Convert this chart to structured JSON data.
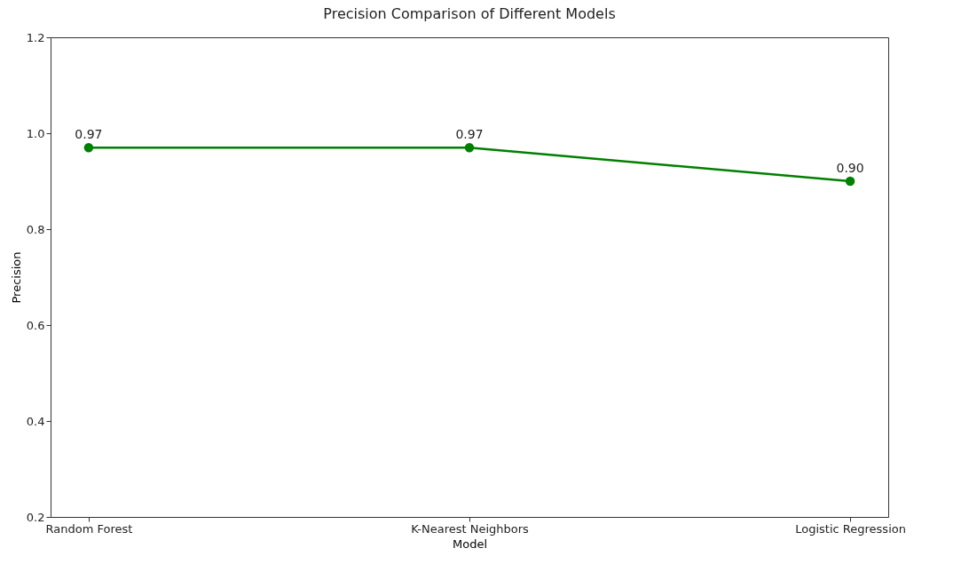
{
  "chart_data": {
    "type": "line",
    "title": "Precision Comparison of Different Models",
    "xlabel": "Model",
    "ylabel": "Precision",
    "categories": [
      "Random Forest",
      "K-Nearest Neighbors",
      "Logistic Regression"
    ],
    "series": [
      {
        "color": "#008000",
        "values": [
          0.97,
          0.97,
          0.9
        ],
        "value_labels": [
          "0.97",
          "0.97",
          "0.90"
        ]
      }
    ],
    "ylim": [
      0.2,
      1.2
    ],
    "yticks": [
      {
        "value": 0.2,
        "label": "0.2"
      },
      {
        "value": 0.4,
        "label": "0.4"
      },
      {
        "value": 0.6,
        "label": "0.6"
      },
      {
        "value": 0.8,
        "label": "0.8"
      },
      {
        "value": 1,
        "label": "1.0"
      },
      {
        "value": 1.2,
        "label": "1.2"
      }
    ],
    "marker": "circle",
    "line_style": "solid"
  }
}
